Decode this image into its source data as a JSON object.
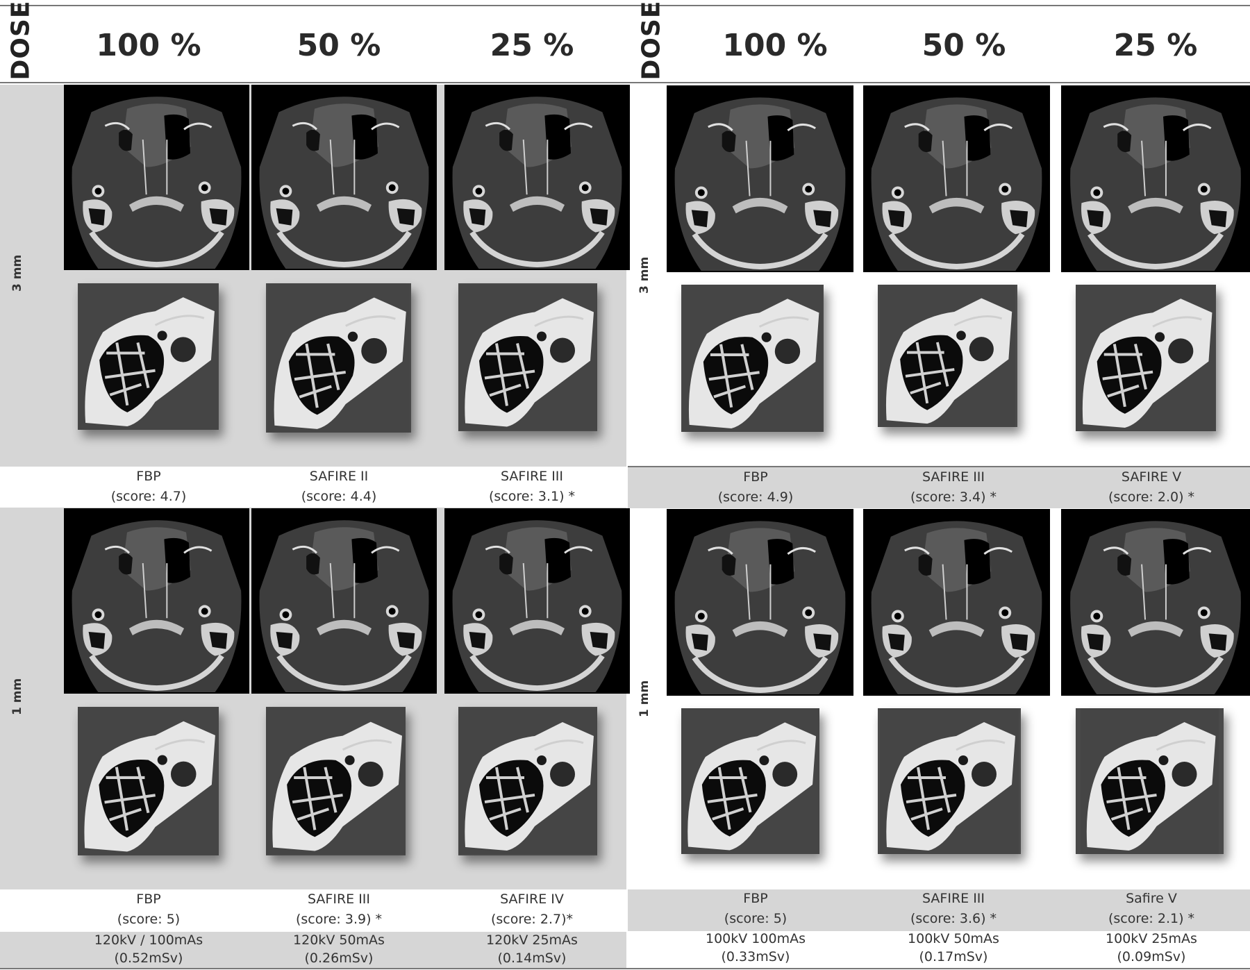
{
  "left_panel": {
    "dose_header": "DOSE",
    "dose_levels": [
      "100 %",
      "50 %",
      "25 %"
    ],
    "row_labels": [
      "3 mm",
      "1 mm"
    ],
    "rows": [
      {
        "captions": [
          {
            "method": "FBP",
            "score": "(score: 4.7)"
          },
          {
            "method": "SAFIRE II",
            "score": "(score: 4.4)"
          },
          {
            "method": "SAFIRE III",
            "score": "(score: 3.1) *"
          }
        ]
      },
      {
        "captions": [
          {
            "method": "FBP",
            "score": "(score: 5)"
          },
          {
            "method": "SAFIRE III",
            "score": "(score: 3.9) *"
          },
          {
            "method": "SAFIRE IV",
            "score": "(score: 2.7)*"
          }
        ]
      }
    ],
    "protocols": [
      {
        "line1": "120kV / 100mAs",
        "line2": "(0.52mSv)"
      },
      {
        "line1": "120kV 50mAs",
        "line2": "(0.26mSv)"
      },
      {
        "line1": "120kV 25mAs",
        "line2": "(0.14mSv)"
      }
    ]
  },
  "right_panel": {
    "dose_header": "DOSE",
    "dose_levels": [
      "100 %",
      "50 %",
      "25 %"
    ],
    "row_labels": [
      "3 mm",
      "1 mm"
    ],
    "rows": [
      {
        "captions": [
          {
            "method": "FBP",
            "score": "(score: 4.9)"
          },
          {
            "method": "SAFIRE III",
            "score": "(score: 3.4) *"
          },
          {
            "method": "SAFIRE V",
            "score": "(score: 2.0) *"
          }
        ]
      },
      {
        "captions": [
          {
            "method": "FBP",
            "score": "(score: 5)"
          },
          {
            "method": "SAFIRE III",
            "score": "(score: 3.6) *"
          },
          {
            "method": "Safire V",
            "score": "(score: 2.1) *"
          }
        ]
      }
    ],
    "protocols": [
      {
        "line1": "100kV 100mAs",
        "line2": "(0.33mSv)"
      },
      {
        "line1": "100kV 50mAs",
        "line2": "(0.17mSv)"
      },
      {
        "line1": "100kV 25mAs",
        "line2": "(0.09mSv)"
      }
    ]
  }
}
